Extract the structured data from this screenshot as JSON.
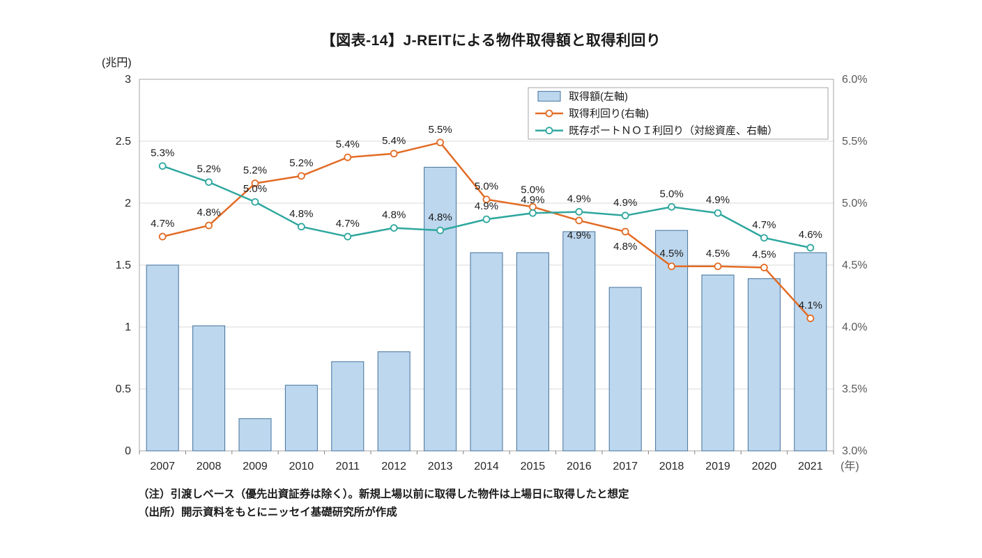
{
  "title": "【図表-14】J-REITによる物件取得額と取得利回り",
  "left_axis_unit": "(兆円)",
  "x_axis_unit": "(年)",
  "notes": [
    "（注）引渡しベース（優先出資証券は除く）。新規上場以前に取得した物件は上場日に取得したと想定",
    "（出所）開示資料をもとにニッセイ基礎研究所が作成"
  ],
  "chart_data": {
    "type": "bar+line",
    "categories": [
      "2007",
      "2008",
      "2009",
      "2010",
      "2011",
      "2012",
      "2013",
      "2014",
      "2015",
      "2016",
      "2017",
      "2018",
      "2019",
      "2020",
      "2021"
    ],
    "series": [
      {
        "name": "取得額(左軸)",
        "type": "bar",
        "axis": "left",
        "color": "#BDD7EE",
        "border_color": "#41719C",
        "values": [
          1.5,
          1.01,
          0.26,
          0.53,
          0.72,
          0.8,
          2.29,
          1.6,
          1.6,
          1.77,
          1.32,
          1.78,
          1.42,
          1.39,
          1.6
        ]
      },
      {
        "name": "取得利回り(右軸)",
        "type": "line",
        "axis": "right",
        "color": "#E26B24",
        "values": [
          4.73,
          4.82,
          5.16,
          5.22,
          5.37,
          5.4,
          5.49,
          5.03,
          4.97,
          4.86,
          4.77,
          4.49,
          4.49,
          4.48,
          4.07
        ],
        "labels": [
          "4.7%",
          "4.8%",
          "5.2%",
          "5.2%",
          "5.4%",
          "5.4%",
          "5.5%",
          "5.0%",
          "5.0%",
          "4.9%",
          "4.8%",
          "4.5%",
          "4.5%",
          "4.5%",
          "4.1%"
        ],
        "label_dy": [
          0,
          0,
          0,
          0,
          0,
          0,
          0,
          0,
          -6,
          40,
          40,
          0,
          0,
          0,
          0
        ]
      },
      {
        "name": "既存ポートＮＯＩ利回り（対総資産、右軸）",
        "type": "line",
        "axis": "right",
        "color": "#2EA79E",
        "values": [
          5.3,
          5.17,
          5.01,
          4.81,
          4.73,
          4.8,
          4.78,
          4.87,
          4.92,
          4.93,
          4.9,
          4.97,
          4.92,
          4.72,
          4.64
        ],
        "labels": [
          "5.3%",
          "5.2%",
          "5.0%",
          "4.8%",
          "4.7%",
          "4.8%",
          "4.8%",
          "4.9%",
          "4.9%",
          "4.9%",
          "4.9%",
          "5.0%",
          "4.9%",
          "4.7%",
          "4.6%"
        ],
        "label_dy": [
          0,
          0,
          0,
          0,
          0,
          0,
          0,
          0,
          0,
          0,
          0,
          0,
          0,
          0,
          0
        ]
      }
    ],
    "left_axis": {
      "min": 0,
      "max": 3,
      "ticks": [
        "0",
        "0.5",
        "1",
        "1.5",
        "2",
        "2.5",
        "3"
      ]
    },
    "right_axis": {
      "min": 3,
      "max": 6,
      "ticks": [
        "3.0%",
        "3.5%",
        "4.0%",
        "4.5%",
        "5.0%",
        "5.5%",
        "6.0%"
      ]
    },
    "grid": true,
    "legend_position": "top-right-inside",
    "colors": {
      "gridline": "#D9D9D9",
      "plot_border": "#A6A6A6",
      "axis_tick": "#808080",
      "left_tick_text": "#262626",
      "right_tick_text": "#595959",
      "label_text": "#1a1a1a"
    }
  }
}
